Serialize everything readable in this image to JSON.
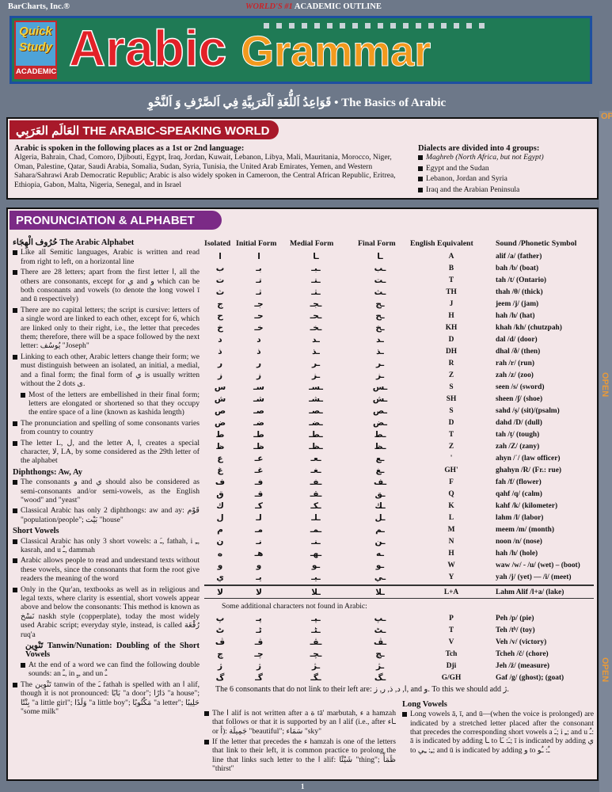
{
  "top": {
    "brand": "BarCharts, Inc.®",
    "tagline_em": "WORLD'S #1",
    "tagline": " ACADEMIC OUTLINE"
  },
  "logo": {
    "line1": "Quick",
    "line2": "Study",
    "line3": "ACADEMIC"
  },
  "banner": {
    "title_word1": "Arabic",
    "title_word2": "Grammar"
  },
  "subtitle": "قَوَاعِدُ اَللُّغَةِ اَلْعَرَبِيَّةِ فِي اَلصَّرْفِ وَ اَلنَّحْوِ • The Basics of Arabic",
  "side_tab": "OPEN",
  "colors": {
    "background": "#6d7889",
    "banner": "#1f7a55",
    "section1": "#a8192a",
    "section2": "#7b2a86",
    "panel": "#f3e6e8"
  },
  "section1": {
    "header": "العَالَم العَرَبِي THE ARABIC-SPEAKING WORLD",
    "intro_heading": "Arabic is spoken in the following places as a 1st or 2nd language:",
    "intro_text": "Algeria, Bahrain, Chad, Comoro, Djibouti, Egypt, Iraq, Jordan, Kuwait, Lebanon, Libya, Mali, Mauritania, Morocco, Niger, Oman, Palestine, Qatar, Saudi Arabia, Somalia, Sudan, Syria, Tunisia, the United Arab Emirates, Yemen, and Western Sahara/Sahrawi Arab Democratic Republic; Arabic is also widely spoken in Cameroon, the Central African Republic, Eritrea, Ethiopia, Gabon, Malta, Nigeria, Senegal, and in Israel",
    "dialects_heading": "Dialects are divided into 4 groups:",
    "dialects": [
      "Maghreb (North Africa, but not Egypt)",
      "Egypt and the Sudan",
      "Lebanon, Jordan and Syria",
      "Iraq and the Arabian Peninsula"
    ]
  },
  "section2": {
    "header": "PRONUNCIATION & ALPHABET",
    "alphabet_heading": "حُرُوف الْهِجَاء The Arabic Alphabet",
    "alphabet_bullets": [
      "Like all Semitic languages, Arabic is written and read from right to left, on a horizontal line",
      "There are 28 letters; apart from the first letter ا, all the others are consonants, except for ي and و which can be both consonants and vowels (to denote the long vowel ī and ū respectively)",
      "There are no capital letters; the script is cursive: letters of a single word are linked to each other, except for 6, which are linked only to their right, i.e., the letter that precedes them; therefore, there will be a space followed by the next letter: يُوسُف \"Joseph\"",
      "Linking to each other, Arabic letters change their form; we must distinguish between an isolated, an initial, a medial, and a final form; the final form of ي is usually written without the 2 dots ى.",
      "Most of the letters are embellished in their final form; letters are elongated or shortened so that they occupy the entire space of a line (known as kashida length)",
      "The pronunciation and spelling of some consonants varies from country to country",
      "The letter L, ل, and the letter A, ا, creates a special character, لا, LA, by some considered as the 29th letter of the alphabet"
    ],
    "diphthongs_heading": "Diphthongs: Aw, Ay",
    "diphthongs_bullets": [
      "The consonants و and ي should also be considered as semi-consonants and/or semi-vowels, as the English \"wood\" and \"yeast\"",
      "Classical Arabic has only 2 diphthongs: aw and ay: قَوْم \"population/people\"; بَيْت \"house\""
    ],
    "short_vowels_heading": "Short Vowels",
    "short_vowels_bullets": [
      "Classical Arabic has only 3 short vowels: a ـَ, fathah, i ـِ, kasrah, and u ـُ, dammah",
      "Arabic allows people to read and understand texts without these vowels, since the consonants that form the root give readers the meaning of the word",
      "Only in the Qur'an, textbooks as well as in religious and legal texts, where clarity is essential, short vowels appear above and below the consonants: This method is known as نَسْخ naskh style (copperplate), today the most widely used Arabic script; everyday style, instead, is called رُقْعَة ruq'a"
    ],
    "tanwin_heading": "تَنْوِين Tanwin/Nunation: Doubling of the Short Vowels",
    "tanwin_sub": "At the end of a word we can find the following double sounds: an ـً, in ـٍ, and un ـٌ",
    "tanwin_bullet": "The تَنْوِين tanwin of the ـَ fathah is spelled with an ا alif, though it is not pronounced: بَابًا \"a door\"; دَارًا \"a house\"; بِنْتًا \"a little girl\"; وَلَدًا \"a little boy\"; مَكْتُوبًا \"a letter\"; حَلِيبًا \"some milk\"",
    "table": {
      "headers": [
        "Isolated",
        "Initial Form",
        "Medial Form",
        "Final Form",
        "English Equivalent",
        "Sound /Phonetic Symbol"
      ],
      "rows": [
        [
          "ا",
          "ا",
          "ـا",
          "ـا",
          "A",
          "alif /a/ (father)"
        ],
        [
          "ب",
          "بـ",
          "ـبـ",
          "ـب",
          "B",
          "bah /b/ (boat)"
        ],
        [
          "ت",
          "تـ",
          "ـتـ",
          "ـت",
          "T",
          "tah /t/ (Ontario)"
        ],
        [
          "ث",
          "ثـ",
          "ـثـ",
          "ـث",
          "TH",
          "thah /θ/ (thick)"
        ],
        [
          "ج",
          "جـ",
          "ـجـ",
          "ـج",
          "J",
          "jeem /j/ (jam)"
        ],
        [
          "ح",
          "حـ",
          "ـحـ",
          "ـح",
          "H",
          "hah /h/ (hat)"
        ],
        [
          "خ",
          "خـ",
          "ـخـ",
          "ـخ",
          "KH",
          "khah /kh/ (chutzpah)"
        ],
        [
          "د",
          "د",
          "ـد",
          "ـد",
          "D",
          "dal /d/ (door)"
        ],
        [
          "ذ",
          "ذ",
          "ـذ",
          "ـذ",
          "DH",
          "dhal /ð/ (then)"
        ],
        [
          "ر",
          "ر",
          "ـر",
          "ـر",
          "R",
          "rah /r/ (run)"
        ],
        [
          "ز",
          "ز",
          "ـز",
          "ـز",
          "Z",
          "zah /z/ (zoo)"
        ],
        [
          "س",
          "سـ",
          "ـسـ",
          "ـس",
          "S",
          "seen /s/ (sword)"
        ],
        [
          "ش",
          "شـ",
          "ـشـ",
          "ـش",
          "SH",
          "sheen /ʃ/ (shoe)"
        ],
        [
          "ص",
          "صـ",
          "ـصـ",
          "ـص",
          "S",
          "sahd /ṣ/ (sit)/(psalm)"
        ],
        [
          "ض",
          "ضـ",
          "ـضـ",
          "ـض",
          "D",
          "dahd /D/ (dull)"
        ],
        [
          "ط",
          "طـ",
          "ـطـ",
          "ـط",
          "T",
          "tah /ṭ/ (tough)"
        ],
        [
          "ظ",
          "ظـ",
          "ـظـ",
          "ـظ",
          "Z",
          "zah /Z/ (zany)"
        ],
        [
          "ع",
          "عـ",
          "ـعـ",
          "ـع",
          "'",
          "ahyn /ʿ/ (law officer)"
        ],
        [
          "غ",
          "غـ",
          "ـغـ",
          "ـغ",
          "GH'",
          "ghahyn /R/ (Fr.: rue)"
        ],
        [
          "ف",
          "فـ",
          "ـفـ",
          "ـف",
          "F",
          "fah /f/ (flower)"
        ],
        [
          "ق",
          "قـ",
          "ـقـ",
          "ـق",
          "Q",
          "qahf /q/ (calm)"
        ],
        [
          "ك",
          "كـ",
          "ـكـ",
          "ـك",
          "K",
          "kahf /k/ (kilometer)"
        ],
        [
          "ل",
          "لـ",
          "ـلـ",
          "ـل",
          "L",
          "lahm /l/ (labor)"
        ],
        [
          "م",
          "مـ",
          "ـمـ",
          "ـم",
          "M",
          "meem /m/ (month)"
        ],
        [
          "ن",
          "نـ",
          "ـنـ",
          "ـن",
          "N",
          "noon /n/ (nose)"
        ],
        [
          "ه",
          "هـ",
          "ـهـ",
          "ـه",
          "H",
          "hah /h/ (hole)"
        ],
        [
          "و",
          "و",
          "ـو",
          "ـو",
          "W",
          "waw /w/ - /u/ (wet) – (boot)"
        ],
        [
          "ي",
          "يـ",
          "ـيـ",
          "ـي",
          "Y",
          "yah /j/ (yet) — /i/ (meet)"
        ]
      ],
      "la_row": [
        "لا",
        "لا",
        "ـلا",
        "ـلا",
        "L+A",
        "Lahm Alif /l+a/ (lake)"
      ],
      "additional_heading": "Some additional characters not found in Arabic:",
      "additional_rows": [
        [
          "پ",
          "پـ",
          "ـپـ",
          "ـپ",
          "P",
          "Peh /p/ (pie)"
        ],
        [
          "ٹ",
          "ٹـ",
          "ـٹـ",
          "ـٹ",
          "T",
          "Teh /tʰ/ (toy)"
        ],
        [
          "ڤ",
          "ڤـ",
          "ـڤـ",
          "ـڤ",
          "V",
          "Veh /v/ (victory)"
        ],
        [
          "چ",
          "چـ",
          "ـچـ",
          "ـچ",
          "Tch",
          "Tcheh /č/ (chore)"
        ],
        [
          "ژ",
          "ژ",
          "ـژ",
          "ـژ",
          "Dji",
          "Jeh /ž/ (measure)"
        ],
        [
          "گ",
          "گـ",
          "ـگـ",
          "ـگ",
          "G/GH",
          "Gaf /g/ (ghost); (goat)"
        ]
      ],
      "nonlinking_note": "The 6 consonants that do not link to their left are: ا, د, ذ, ر, ز, and و. To this we should add ژ."
    },
    "alif_bullets": [
      "The ا alif is not written after a ة tā' marbutah, ء a hamzah that follows or that it is supported by an ا alif (i.e., after ـاء or أ): جَمِيلَة \"beautiful\"; سَمَاء \"sky\"",
      "If the letter that precedes the ء hamzah is one of the letters that link to their left, it is common practice to prolong the line that links such letter to the ا alif: شَيْئًا \"thing\"; ظَمَأً \"thirst\""
    ],
    "long_vowels_heading": "Long Vowels",
    "long_vowels_bullet": "Long vowels ā, ī, and ū—(when the voice is prolonged) are indicated by a stretched letter placed after the consonant that precedes the corresponding short vowels a ـَ; i ـِ; and u ـُ: ā is indicated by adding ـا to ـَ: ـَا; ī is indicated by adding ي to ـِ: ـِي; and ū is indicated by adding و to ـُ: ـُو"
  },
  "page_number": "1"
}
